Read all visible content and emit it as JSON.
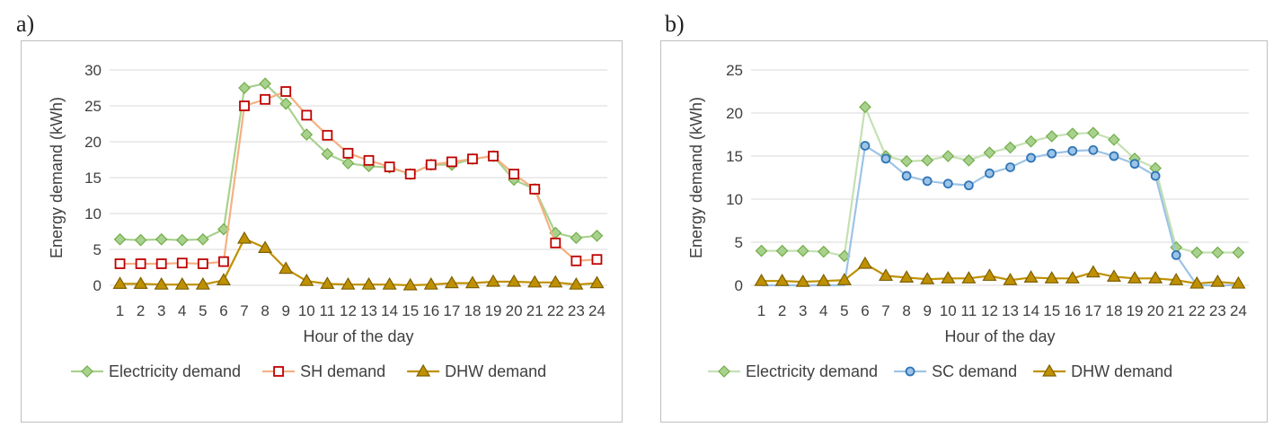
{
  "figure": {
    "panels": [
      {
        "letter": "a)"
      },
      {
        "letter": "b)"
      }
    ]
  },
  "chart_data": [
    {
      "type": "line",
      "panel": "a)",
      "title": "",
      "xlabel": "Hour of the day",
      "ylabel": "Energy demand (kWh)",
      "ylim": [
        0,
        30
      ],
      "yticks": [
        0,
        5,
        10,
        15,
        20,
        25,
        30
      ],
      "grid": true,
      "legend_position": "bottom",
      "categories": [
        "1",
        "2",
        "3",
        "4",
        "5",
        "6",
        "7",
        "8",
        "9",
        "10",
        "11",
        "12",
        "13",
        "14",
        "15",
        "16",
        "17",
        "18",
        "19",
        "20",
        "21",
        "22",
        "23",
        "24"
      ],
      "series": [
        {
          "name": "Electricity demand",
          "color": "#70ad47",
          "line": "#a9d18e",
          "fill": "#a9d18e",
          "marker": "diamond",
          "values": [
            6.4,
            6.3,
            6.4,
            6.3,
            6.4,
            7.8,
            27.5,
            28.1,
            25.3,
            21.0,
            18.3,
            17.0,
            16.6,
            16.4,
            15.5,
            16.8,
            16.8,
            17.6,
            18.0,
            14.7,
            13.4,
            7.3,
            6.6,
            6.9
          ]
        },
        {
          "name": "SH demand",
          "color": "#c00000",
          "line": "#f4b183",
          "fill": "#ffffff",
          "marker": "square",
          "values": [
            3.0,
            3.0,
            3.0,
            3.1,
            3.0,
            3.3,
            25.0,
            25.9,
            27.0,
            23.7,
            20.9,
            18.4,
            17.4,
            16.5,
            15.5,
            16.8,
            17.2,
            17.6,
            18.0,
            15.5,
            13.4,
            5.9,
            3.4,
            3.6
          ]
        },
        {
          "name": "DHW demand",
          "color": "#7f6000",
          "line": "#bf9000",
          "fill": "#bf9000",
          "marker": "triangle",
          "values": [
            0.2,
            0.2,
            0.1,
            0.1,
            0.1,
            0.7,
            6.5,
            5.2,
            2.3,
            0.6,
            0.2,
            0.1,
            0.1,
            0.1,
            0.0,
            0.1,
            0.3,
            0.3,
            0.5,
            0.5,
            0.4,
            0.4,
            0.1,
            0.3
          ]
        }
      ]
    },
    {
      "type": "line",
      "panel": "b)",
      "title": "",
      "xlabel": "Hour of the day",
      "ylabel": "Energy demand (kWh)",
      "ylim": [
        0,
        25
      ],
      "yticks": [
        0,
        5,
        10,
        15,
        20,
        25
      ],
      "grid": true,
      "legend_position": "bottom",
      "categories": [
        "1",
        "2",
        "3",
        "4",
        "5",
        "6",
        "7",
        "8",
        "9",
        "10",
        "11",
        "12",
        "13",
        "14",
        "15",
        "16",
        "17",
        "18",
        "19",
        "20",
        "21",
        "22",
        "23",
        "24"
      ],
      "series": [
        {
          "name": "Electricity demand",
          "color": "#70ad47",
          "line": "#c5e0b4",
          "fill": "#a9d18e",
          "marker": "diamond",
          "values": [
            4.0,
            4.0,
            4.0,
            3.9,
            3.4,
            20.7,
            15.0,
            14.4,
            14.5,
            15.0,
            14.5,
            15.4,
            16.0,
            16.7,
            17.3,
            17.6,
            17.7,
            16.9,
            14.7,
            13.6,
            4.4,
            3.8,
            3.8,
            3.8
          ]
        },
        {
          "name": "SC demand",
          "color": "#2e75b6",
          "line": "#9dc3e6",
          "fill": "#9dc3e6",
          "marker": "circle",
          "values": [
            0,
            0,
            0,
            0,
            0,
            16.2,
            14.7,
            12.7,
            12.1,
            11.8,
            11.6,
            13.0,
            13.7,
            14.8,
            15.3,
            15.6,
            15.7,
            15.0,
            14.1,
            12.7,
            3.5,
            0,
            0,
            0
          ],
          "hidden_markers": [
            1,
            2,
            3,
            4,
            5,
            22,
            23,
            24
          ]
        },
        {
          "name": "DHW demand",
          "color": "#7f6000",
          "line": "#bf9000",
          "fill": "#bf9000",
          "marker": "triangle",
          "values": [
            0.5,
            0.5,
            0.4,
            0.5,
            0.6,
            2.5,
            1.1,
            0.9,
            0.7,
            0.8,
            0.8,
            1.1,
            0.6,
            0.9,
            0.8,
            0.8,
            1.5,
            1.0,
            0.8,
            0.8,
            0.6,
            0.2,
            0.4,
            0.2
          ]
        }
      ]
    }
  ]
}
